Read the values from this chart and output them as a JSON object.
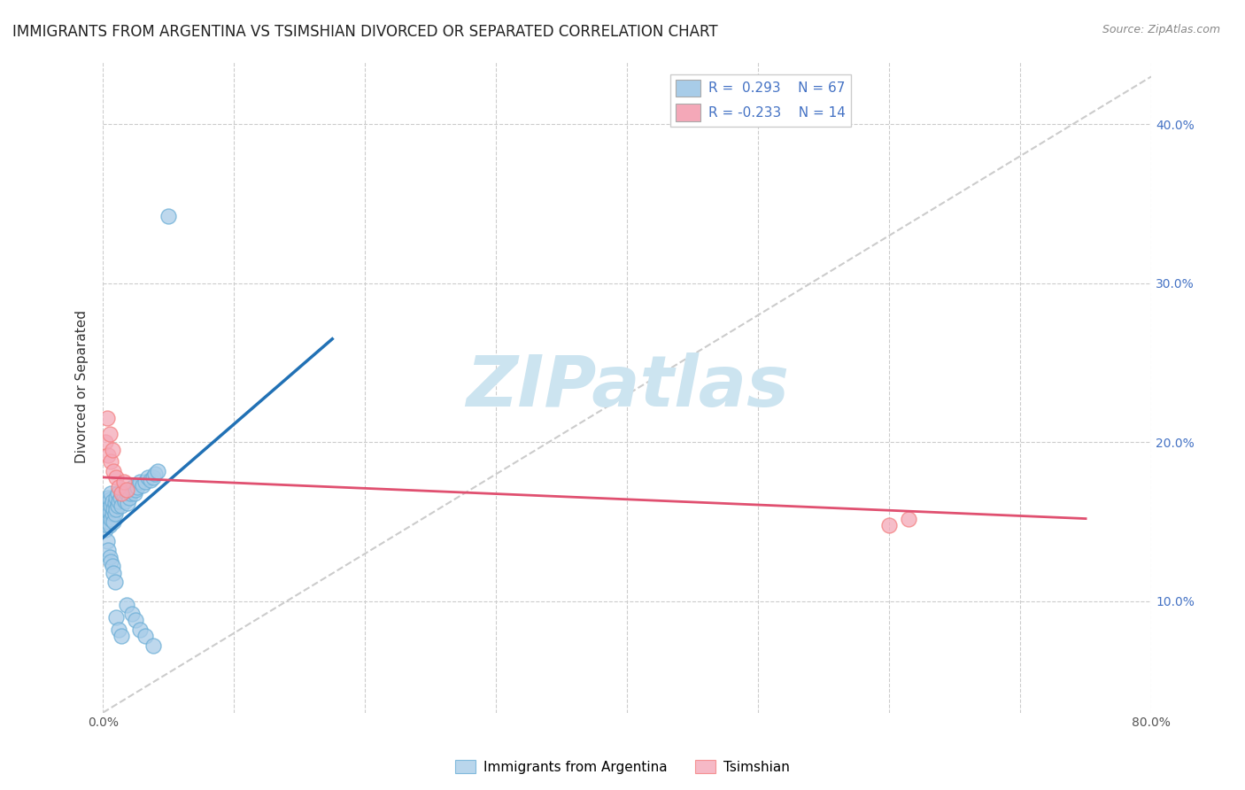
{
  "title": "IMMIGRANTS FROM ARGENTINA VS TSIMSHIAN DIVORCED OR SEPARATED CORRELATION CHART",
  "source_text": "Source: ZipAtlas.com",
  "ylabel": "Divorced or Separated",
  "xlim": [
    0.0,
    0.8
  ],
  "ylim": [
    0.03,
    0.44
  ],
  "xticks": [
    0.0,
    0.1,
    0.2,
    0.3,
    0.4,
    0.5,
    0.6,
    0.7,
    0.8
  ],
  "xticklabels": [
    "0.0%",
    "",
    "",
    "",
    "",
    "",
    "",
    "",
    "80.0%"
  ],
  "yticks": [
    0.1,
    0.2,
    0.3,
    0.4
  ],
  "yticklabels_right": [
    "10.0%",
    "20.0%",
    "30.0%",
    "40.0%"
  ],
  "legend_blue_label": "Immigrants from Argentina",
  "legend_pink_label": "Tsimshian",
  "r_blue": "0.293",
  "n_blue": "67",
  "r_pink": "-0.233",
  "n_pink": "14",
  "blue_color": "#a8cce8",
  "pink_color": "#f4a8b8",
  "blue_scatter_edge": "#6baed6",
  "pink_scatter_edge": "#f48080",
  "blue_line_color": "#2171b5",
  "pink_line_color": "#e05070",
  "ref_line_color": "#cccccc",
  "background_color": "#ffffff",
  "watermark_color": "#cce4f0",
  "title_fontsize": 12,
  "label_fontsize": 11,
  "tick_fontsize": 10,
  "blue_scatter_x": [
    0.001,
    0.001,
    0.002,
    0.002,
    0.002,
    0.003,
    0.003,
    0.003,
    0.004,
    0.004,
    0.004,
    0.005,
    0.005,
    0.005,
    0.006,
    0.006,
    0.006,
    0.007,
    0.007,
    0.008,
    0.008,
    0.009,
    0.009,
    0.01,
    0.01,
    0.011,
    0.011,
    0.012,
    0.013,
    0.014,
    0.015,
    0.016,
    0.017,
    0.018,
    0.019,
    0.02,
    0.021,
    0.022,
    0.023,
    0.024,
    0.025,
    0.026,
    0.028,
    0.03,
    0.032,
    0.034,
    0.036,
    0.038,
    0.04,
    0.042,
    0.003,
    0.004,
    0.005,
    0.006,
    0.007,
    0.008,
    0.009,
    0.01,
    0.012,
    0.014,
    0.018,
    0.022,
    0.025,
    0.028,
    0.032,
    0.038,
    0.05
  ],
  "blue_scatter_y": [
    0.15,
    0.155,
    0.145,
    0.158,
    0.163,
    0.148,
    0.155,
    0.162,
    0.15,
    0.157,
    0.165,
    0.148,
    0.156,
    0.164,
    0.152,
    0.16,
    0.168,
    0.155,
    0.163,
    0.15,
    0.158,
    0.155,
    0.162,
    0.158,
    0.165,
    0.16,
    0.168,
    0.163,
    0.165,
    0.16,
    0.168,
    0.165,
    0.163,
    0.168,
    0.162,
    0.165,
    0.168,
    0.17,
    0.172,
    0.168,
    0.17,
    0.172,
    0.175,
    0.173,
    0.175,
    0.178,
    0.176,
    0.178,
    0.18,
    0.182,
    0.138,
    0.132,
    0.128,
    0.125,
    0.122,
    0.118,
    0.112,
    0.09,
    0.082,
    0.078,
    0.098,
    0.092,
    0.088,
    0.082,
    0.078,
    0.072,
    0.342
  ],
  "pink_scatter_x": [
    0.002,
    0.003,
    0.004,
    0.005,
    0.006,
    0.007,
    0.008,
    0.01,
    0.012,
    0.014,
    0.6,
    0.615,
    0.016,
    0.018
  ],
  "pink_scatter_y": [
    0.2,
    0.215,
    0.192,
    0.205,
    0.188,
    0.195,
    0.182,
    0.178,
    0.172,
    0.168,
    0.148,
    0.152,
    0.175,
    0.17
  ],
  "blue_line_x": [
    0.0,
    0.175
  ],
  "blue_line_y": [
    0.14,
    0.265
  ],
  "pink_line_x": [
    0.0,
    0.75
  ],
  "pink_line_y": [
    0.178,
    0.152
  ],
  "ref_line_x": [
    0.0,
    0.8
  ],
  "ref_line_y": [
    0.03,
    0.43
  ]
}
